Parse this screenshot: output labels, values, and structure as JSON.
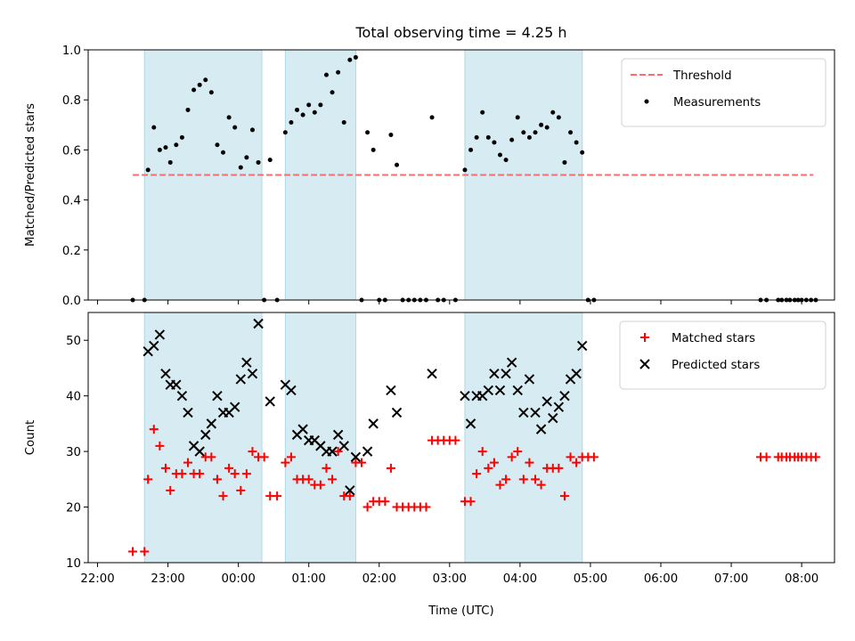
{
  "title": "Total observing time = 4.25 h",
  "xlabel": "Time (UTC)",
  "colors": {
    "shade": "#add8e6",
    "threshold": "#ff6b6b",
    "measurement": "#000000",
    "matched": "#ff0000",
    "predicted": "#000000"
  },
  "chart_data": [
    {
      "type": "scatter",
      "panel": "top",
      "ylabel": "Matched/Predicted stars",
      "ylim": [
        0,
        1.0
      ],
      "yticks": [
        0.0,
        0.2,
        0.4,
        0.6,
        0.8,
        1.0
      ],
      "ytick_labels": [
        "0.0",
        "0.2",
        "0.4",
        "0.6",
        "0.8",
        "1.0"
      ],
      "legend_position": "top-right",
      "threshold": {
        "name": "Threshold",
        "y": 0.5,
        "x_range": [
          "22:30",
          "08:10"
        ],
        "style": "dashed"
      },
      "series": [
        {
          "name": "Measurements",
          "points": [
            [
              "22:30",
              0
            ],
            [
              "22:40",
              0
            ],
            [
              "22:43",
              0.52
            ],
            [
              "22:48",
              0.69
            ],
            [
              "22:53",
              0.6
            ],
            [
              "22:58",
              0.61
            ],
            [
              "23:02",
              0.55
            ],
            [
              "23:07",
              0.62
            ],
            [
              "23:12",
              0.65
            ],
            [
              "23:17",
              0.76
            ],
            [
              "23:22",
              0.84
            ],
            [
              "23:27",
              0.86
            ],
            [
              "23:32",
              0.88
            ],
            [
              "23:37",
              0.83
            ],
            [
              "23:42",
              0.62
            ],
            [
              "23:47",
              0.59
            ],
            [
              "23:52",
              0.73
            ],
            [
              "23:57",
              0.69
            ],
            [
              "00:02",
              0.53
            ],
            [
              "00:07",
              0.57
            ],
            [
              "00:12",
              0.68
            ],
            [
              "00:17",
              0.55
            ],
            [
              "00:22",
              0
            ],
            [
              "00:27",
              0.56
            ],
            [
              "00:33",
              0
            ],
            [
              "00:40",
              0.67
            ],
            [
              "00:45",
              0.71
            ],
            [
              "00:50",
              0.76
            ],
            [
              "00:55",
              0.74
            ],
            [
              "01:00",
              0.78
            ],
            [
              "01:05",
              0.75
            ],
            [
              "01:10",
              0.78
            ],
            [
              "01:15",
              0.9
            ],
            [
              "01:20",
              0.83
            ],
            [
              "01:25",
              0.91
            ],
            [
              "01:30",
              0.71
            ],
            [
              "01:35",
              0.96
            ],
            [
              "01:40",
              0.97
            ],
            [
              "01:45",
              0
            ],
            [
              "01:50",
              0.67
            ],
            [
              "01:55",
              0.6
            ],
            [
              "02:00",
              0
            ],
            [
              "02:05",
              0
            ],
            [
              "02:10",
              0.66
            ],
            [
              "02:15",
              0.54
            ],
            [
              "02:20",
              0
            ],
            [
              "02:25",
              0
            ],
            [
              "02:30",
              0
            ],
            [
              "02:35",
              0
            ],
            [
              "02:40",
              0
            ],
            [
              "02:45",
              0.73
            ],
            [
              "02:50",
              0
            ],
            [
              "02:55",
              0
            ],
            [
              "03:05",
              0
            ],
            [
              "03:13",
              0.52
            ],
            [
              "03:18",
              0.6
            ],
            [
              "03:23",
              0.65
            ],
            [
              "03:28",
              0.75
            ],
            [
              "03:33",
              0.65
            ],
            [
              "03:38",
              0.63
            ],
            [
              "03:43",
              0.58
            ],
            [
              "03:48",
              0.56
            ],
            [
              "03:53",
              0.64
            ],
            [
              "03:58",
              0.73
            ],
            [
              "04:03",
              0.67
            ],
            [
              "04:08",
              0.65
            ],
            [
              "04:13",
              0.67
            ],
            [
              "04:18",
              0.7
            ],
            [
              "04:23",
              0.69
            ],
            [
              "04:28",
              0.75
            ],
            [
              "04:33",
              0.73
            ],
            [
              "04:38",
              0.55
            ],
            [
              "04:43",
              0.67
            ],
            [
              "04:48",
              0.63
            ],
            [
              "04:53",
              0.59
            ],
            [
              "04:58",
              0
            ],
            [
              "05:03",
              0
            ],
            [
              "07:25",
              0
            ],
            [
              "07:30",
              0
            ],
            [
              "07:40",
              0
            ],
            [
              "07:43",
              0
            ],
            [
              "07:47",
              0
            ],
            [
              "07:50",
              0
            ],
            [
              "07:54",
              0
            ],
            [
              "07:57",
              0
            ],
            [
              "08:00",
              0
            ],
            [
              "08:04",
              0
            ],
            [
              "08:08",
              0
            ],
            [
              "08:12",
              0
            ]
          ]
        }
      ]
    },
    {
      "type": "scatter",
      "panel": "bottom",
      "ylabel": "Count",
      "ylim": [
        10,
        55
      ],
      "yticks": [
        10,
        20,
        30,
        40,
        50
      ],
      "ytick_labels": [
        "10",
        "20",
        "30",
        "40",
        "50"
      ],
      "legend_position": "top-right",
      "x_ticks": [
        "22:00",
        "23:00",
        "00:00",
        "01:00",
        "02:00",
        "03:00",
        "04:00",
        "05:00",
        "06:00",
        "07:00",
        "08:00"
      ],
      "x_tick_labels": [
        "22:00",
        "23:00",
        "00:00",
        "01:00",
        "02:00",
        "03:00",
        "04:00",
        "05:00",
        "06:00",
        "07:00",
        "08:00"
      ],
      "series": [
        {
          "name": "Matched stars",
          "marker": "plus",
          "points": [
            [
              "22:30",
              12
            ],
            [
              "22:40",
              12
            ],
            [
              "22:43",
              25
            ],
            [
              "22:48",
              34
            ],
            [
              "22:53",
              31
            ],
            [
              "22:58",
              27
            ],
            [
              "23:02",
              23
            ],
            [
              "23:07",
              26
            ],
            [
              "23:12",
              26
            ],
            [
              "23:17",
              28
            ],
            [
              "23:22",
              26
            ],
            [
              "23:27",
              26
            ],
            [
              "23:32",
              29
            ],
            [
              "23:37",
              29
            ],
            [
              "23:42",
              25
            ],
            [
              "23:47",
              22
            ],
            [
              "23:52",
              27
            ],
            [
              "23:57",
              26
            ],
            [
              "00:02",
              23
            ],
            [
              "00:07",
              26
            ],
            [
              "00:12",
              30
            ],
            [
              "00:17",
              29
            ],
            [
              "00:22",
              29
            ],
            [
              "00:27",
              22
            ],
            [
              "00:33",
              22
            ],
            [
              "00:40",
              28
            ],
            [
              "00:45",
              29
            ],
            [
              "00:50",
              25
            ],
            [
              "00:55",
              25
            ],
            [
              "01:00",
              25
            ],
            [
              "01:05",
              24
            ],
            [
              "01:10",
              24
            ],
            [
              "01:15",
              27
            ],
            [
              "01:20",
              25
            ],
            [
              "01:25",
              30
            ],
            [
              "01:30",
              22
            ],
            [
              "01:35",
              22
            ],
            [
              "01:40",
              28
            ],
            [
              "01:45",
              28
            ],
            [
              "01:50",
              20
            ],
            [
              "01:55",
              21
            ],
            [
              "02:00",
              21
            ],
            [
              "02:05",
              21
            ],
            [
              "02:10",
              27
            ],
            [
              "02:15",
              20
            ],
            [
              "02:20",
              20
            ],
            [
              "02:25",
              20
            ],
            [
              "02:30",
              20
            ],
            [
              "02:35",
              20
            ],
            [
              "02:40",
              20
            ],
            [
              "02:45",
              32
            ],
            [
              "02:50",
              32
            ],
            [
              "02:55",
              32
            ],
            [
              "03:00",
              32
            ],
            [
              "03:05",
              32
            ],
            [
              "03:13",
              21
            ],
            [
              "03:18",
              21
            ],
            [
              "03:23",
              26
            ],
            [
              "03:28",
              30
            ],
            [
              "03:33",
              27
            ],
            [
              "03:38",
              28
            ],
            [
              "03:43",
              24
            ],
            [
              "03:48",
              25
            ],
            [
              "03:53",
              29
            ],
            [
              "03:58",
              30
            ],
            [
              "04:03",
              25
            ],
            [
              "04:08",
              28
            ],
            [
              "04:13",
              25
            ],
            [
              "04:18",
              24
            ],
            [
              "04:23",
              27
            ],
            [
              "04:28",
              27
            ],
            [
              "04:33",
              27
            ],
            [
              "04:38",
              22
            ],
            [
              "04:43",
              29
            ],
            [
              "04:48",
              28
            ],
            [
              "04:53",
              29
            ],
            [
              "04:58",
              29
            ],
            [
              "05:03",
              29
            ],
            [
              "07:25",
              29
            ],
            [
              "07:30",
              29
            ],
            [
              "07:40",
              29
            ],
            [
              "07:43",
              29
            ],
            [
              "07:47",
              29
            ],
            [
              "07:50",
              29
            ],
            [
              "07:54",
              29
            ],
            [
              "07:57",
              29
            ],
            [
              "08:00",
              29
            ],
            [
              "08:04",
              29
            ],
            [
              "08:08",
              29
            ],
            [
              "08:12",
              29
            ]
          ]
        },
        {
          "name": "Predicted stars",
          "marker": "x",
          "points": [
            [
              "22:43",
              48
            ],
            [
              "22:48",
              49
            ],
            [
              "22:53",
              51
            ],
            [
              "22:58",
              44
            ],
            [
              "23:02",
              42
            ],
            [
              "23:07",
              42
            ],
            [
              "23:12",
              40
            ],
            [
              "23:17",
              37
            ],
            [
              "23:22",
              31
            ],
            [
              "23:27",
              30
            ],
            [
              "23:32",
              33
            ],
            [
              "23:37",
              35
            ],
            [
              "23:42",
              40
            ],
            [
              "23:47",
              37
            ],
            [
              "23:52",
              37
            ],
            [
              "23:57",
              38
            ],
            [
              "00:02",
              43
            ],
            [
              "00:07",
              46
            ],
            [
              "00:12",
              44
            ],
            [
              "00:17",
              53
            ],
            [
              "00:27",
              39
            ],
            [
              "00:40",
              42
            ],
            [
              "00:45",
              41
            ],
            [
              "00:50",
              33
            ],
            [
              "00:55",
              34
            ],
            [
              "01:00",
              32
            ],
            [
              "01:05",
              32
            ],
            [
              "01:10",
              31
            ],
            [
              "01:15",
              30
            ],
            [
              "01:20",
              30
            ],
            [
              "01:25",
              33
            ],
            [
              "01:30",
              31
            ],
            [
              "01:35",
              23
            ],
            [
              "01:40",
              29
            ],
            [
              "01:50",
              30
            ],
            [
              "01:55",
              35
            ],
            [
              "02:10",
              41
            ],
            [
              "02:15",
              37
            ],
            [
              "02:45",
              44
            ],
            [
              "03:13",
              40
            ],
            [
              "03:18",
              35
            ],
            [
              "03:23",
              40
            ],
            [
              "03:28",
              40
            ],
            [
              "03:33",
              41
            ],
            [
              "03:38",
              44
            ],
            [
              "03:43",
              41
            ],
            [
              "03:48",
              44
            ],
            [
              "03:53",
              46
            ],
            [
              "03:58",
              41
            ],
            [
              "04:03",
              37
            ],
            [
              "04:08",
              43
            ],
            [
              "04:13",
              37
            ],
            [
              "04:18",
              34
            ],
            [
              "04:23",
              39
            ],
            [
              "04:28",
              36
            ],
            [
              "04:33",
              38
            ],
            [
              "04:38",
              40
            ],
            [
              "04:43",
              43
            ],
            [
              "04:48",
              44
            ],
            [
              "04:53",
              49
            ]
          ]
        }
      ]
    }
  ],
  "shaded_intervals": [
    [
      "22:40",
      "00:20"
    ],
    [
      "00:40",
      "01:40"
    ],
    [
      "03:13",
      "04:53"
    ]
  ]
}
